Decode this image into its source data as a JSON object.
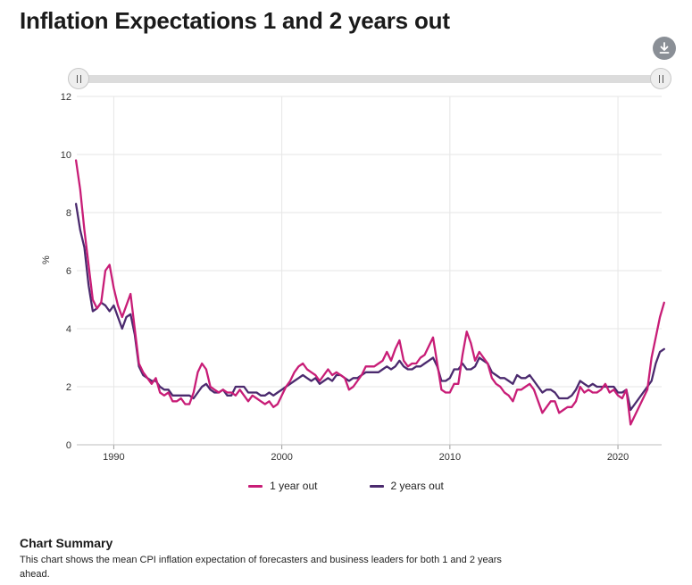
{
  "title": "Inflation Expectations 1 and 2 years out",
  "download": {
    "icon": "download-icon"
  },
  "range_slider": {
    "handle_icon": "grip-icon"
  },
  "chart_data": {
    "type": "line",
    "xlabel": "",
    "ylabel": "%",
    "xlim": [
      1987.8,
      2022.6
    ],
    "ylim": [
      0,
      12
    ],
    "x_ticks": [
      1990,
      2000,
      2010,
      2020
    ],
    "y_ticks": [
      0,
      2,
      4,
      6,
      8,
      10,
      12
    ],
    "grid": true,
    "legend_position": "bottom-center",
    "series": [
      {
        "name": "1 year out",
        "color": "#c81d77",
        "points": [
          [
            1987.75,
            9.8
          ],
          [
            1988.0,
            8.8
          ],
          [
            1988.25,
            7.4
          ],
          [
            1988.5,
            6.2
          ],
          [
            1988.75,
            5.0
          ],
          [
            1989.0,
            4.7
          ],
          [
            1989.25,
            4.9
          ],
          [
            1989.5,
            6.0
          ],
          [
            1989.75,
            6.2
          ],
          [
            1990.0,
            5.4
          ],
          [
            1990.25,
            4.8
          ],
          [
            1990.5,
            4.4
          ],
          [
            1990.75,
            4.8
          ],
          [
            1991.0,
            5.2
          ],
          [
            1991.25,
            4.0
          ],
          [
            1991.5,
            2.8
          ],
          [
            1991.75,
            2.5
          ],
          [
            1992.0,
            2.3
          ],
          [
            1992.25,
            2.1
          ],
          [
            1992.5,
            2.3
          ],
          [
            1992.75,
            1.8
          ],
          [
            1993.0,
            1.7
          ],
          [
            1993.25,
            1.8
          ],
          [
            1993.5,
            1.5
          ],
          [
            1993.75,
            1.5
          ],
          [
            1994.0,
            1.6
          ],
          [
            1994.25,
            1.4
          ],
          [
            1994.5,
            1.4
          ],
          [
            1994.75,
            1.8
          ],
          [
            1995.0,
            2.5
          ],
          [
            1995.25,
            2.8
          ],
          [
            1995.5,
            2.6
          ],
          [
            1995.75,
            2.0
          ],
          [
            1996.0,
            1.9
          ],
          [
            1996.25,
            1.8
          ],
          [
            1996.5,
            1.9
          ],
          [
            1996.75,
            1.8
          ],
          [
            1997.0,
            1.8
          ],
          [
            1997.25,
            1.7
          ],
          [
            1997.5,
            1.9
          ],
          [
            1997.75,
            1.7
          ],
          [
            1998.0,
            1.5
          ],
          [
            1998.25,
            1.7
          ],
          [
            1998.5,
            1.6
          ],
          [
            1998.75,
            1.5
          ],
          [
            1999.0,
            1.4
          ],
          [
            1999.25,
            1.5
          ],
          [
            1999.5,
            1.3
          ],
          [
            1999.75,
            1.4
          ],
          [
            2000.0,
            1.7
          ],
          [
            2000.25,
            2.0
          ],
          [
            2000.5,
            2.2
          ],
          [
            2000.75,
            2.5
          ],
          [
            2001.0,
            2.7
          ],
          [
            2001.25,
            2.8
          ],
          [
            2001.5,
            2.6
          ],
          [
            2001.75,
            2.5
          ],
          [
            2002.0,
            2.4
          ],
          [
            2002.25,
            2.2
          ],
          [
            2002.5,
            2.4
          ],
          [
            2002.75,
            2.6
          ],
          [
            2003.0,
            2.4
          ],
          [
            2003.25,
            2.5
          ],
          [
            2003.5,
            2.4
          ],
          [
            2003.75,
            2.3
          ],
          [
            2004.0,
            1.9
          ],
          [
            2004.25,
            2.0
          ],
          [
            2004.5,
            2.2
          ],
          [
            2004.75,
            2.4
          ],
          [
            2005.0,
            2.7
          ],
          [
            2005.25,
            2.7
          ],
          [
            2005.5,
            2.7
          ],
          [
            2005.75,
            2.8
          ],
          [
            2006.0,
            2.9
          ],
          [
            2006.25,
            3.2
          ],
          [
            2006.5,
            2.9
          ],
          [
            2006.75,
            3.3
          ],
          [
            2007.0,
            3.6
          ],
          [
            2007.25,
            2.9
          ],
          [
            2007.5,
            2.7
          ],
          [
            2007.75,
            2.8
          ],
          [
            2008.0,
            2.8
          ],
          [
            2008.25,
            3.0
          ],
          [
            2008.5,
            3.1
          ],
          [
            2008.75,
            3.4
          ],
          [
            2009.0,
            3.7
          ],
          [
            2009.25,
            2.8
          ],
          [
            2009.5,
            1.9
          ],
          [
            2009.75,
            1.8
          ],
          [
            2010.0,
            1.8
          ],
          [
            2010.25,
            2.1
          ],
          [
            2010.5,
            2.1
          ],
          [
            2010.75,
            3.1
          ],
          [
            2011.0,
            3.9
          ],
          [
            2011.25,
            3.5
          ],
          [
            2011.5,
            2.9
          ],
          [
            2011.75,
            3.2
          ],
          [
            2012.0,
            3.0
          ],
          [
            2012.25,
            2.8
          ],
          [
            2012.5,
            2.3
          ],
          [
            2012.75,
            2.1
          ],
          [
            2013.0,
            2.0
          ],
          [
            2013.25,
            1.8
          ],
          [
            2013.5,
            1.7
          ],
          [
            2013.75,
            1.5
          ],
          [
            2014.0,
            1.9
          ],
          [
            2014.25,
            1.9
          ],
          [
            2014.5,
            2.0
          ],
          [
            2014.75,
            2.1
          ],
          [
            2015.0,
            1.9
          ],
          [
            2015.25,
            1.5
          ],
          [
            2015.5,
            1.1
          ],
          [
            2015.75,
            1.3
          ],
          [
            2016.0,
            1.5
          ],
          [
            2016.25,
            1.5
          ],
          [
            2016.5,
            1.1
          ],
          [
            2016.75,
            1.2
          ],
          [
            2017.0,
            1.3
          ],
          [
            2017.25,
            1.3
          ],
          [
            2017.5,
            1.5
          ],
          [
            2017.75,
            2.0
          ],
          [
            2018.0,
            1.8
          ],
          [
            2018.25,
            1.9
          ],
          [
            2018.5,
            1.8
          ],
          [
            2018.75,
            1.8
          ],
          [
            2019.0,
            1.9
          ],
          [
            2019.25,
            2.1
          ],
          [
            2019.5,
            1.8
          ],
          [
            2019.75,
            1.9
          ],
          [
            2020.0,
            1.7
          ],
          [
            2020.25,
            1.6
          ],
          [
            2020.5,
            1.9
          ],
          [
            2020.75,
            0.7
          ],
          [
            2021.0,
            1.0
          ],
          [
            2021.25,
            1.3
          ],
          [
            2021.5,
            1.6
          ],
          [
            2021.75,
            1.9
          ],
          [
            2022.0,
            3.0
          ],
          [
            2022.25,
            3.7
          ],
          [
            2022.5,
            4.4
          ],
          [
            2022.75,
            4.9
          ]
        ]
      },
      {
        "name": "2 years out",
        "color": "#4b2a6e",
        "points": [
          [
            1987.75,
            8.3
          ],
          [
            1988.0,
            7.4
          ],
          [
            1988.25,
            6.8
          ],
          [
            1988.5,
            5.5
          ],
          [
            1988.75,
            4.6
          ],
          [
            1989.0,
            4.7
          ],
          [
            1989.25,
            4.9
          ],
          [
            1989.5,
            4.8
          ],
          [
            1989.75,
            4.6
          ],
          [
            1990.0,
            4.8
          ],
          [
            1990.25,
            4.4
          ],
          [
            1990.5,
            4.0
          ],
          [
            1990.75,
            4.4
          ],
          [
            1991.0,
            4.5
          ],
          [
            1991.25,
            3.8
          ],
          [
            1991.5,
            2.7
          ],
          [
            1991.75,
            2.4
          ],
          [
            1992.0,
            2.3
          ],
          [
            1992.25,
            2.2
          ],
          [
            1992.5,
            2.2
          ],
          [
            1992.75,
            2.0
          ],
          [
            1993.0,
            1.9
          ],
          [
            1993.25,
            1.9
          ],
          [
            1993.5,
            1.7
          ],
          [
            1993.75,
            1.7
          ],
          [
            1994.0,
            1.7
          ],
          [
            1994.25,
            1.7
          ],
          [
            1994.5,
            1.7
          ],
          [
            1994.75,
            1.6
          ],
          [
            1995.0,
            1.8
          ],
          [
            1995.25,
            2.0
          ],
          [
            1995.5,
            2.1
          ],
          [
            1995.75,
            1.9
          ],
          [
            1996.0,
            1.8
          ],
          [
            1996.25,
            1.8
          ],
          [
            1996.5,
            1.9
          ],
          [
            1996.75,
            1.7
          ],
          [
            1997.0,
            1.7
          ],
          [
            1997.25,
            2.0
          ],
          [
            1997.5,
            2.0
          ],
          [
            1997.75,
            2.0
          ],
          [
            1998.0,
            1.8
          ],
          [
            1998.25,
            1.8
          ],
          [
            1998.5,
            1.8
          ],
          [
            1998.75,
            1.7
          ],
          [
            1999.0,
            1.7
          ],
          [
            1999.25,
            1.8
          ],
          [
            1999.5,
            1.7
          ],
          [
            1999.75,
            1.8
          ],
          [
            2000.0,
            1.9
          ],
          [
            2000.25,
            2.0
          ],
          [
            2000.5,
            2.1
          ],
          [
            2000.75,
            2.2
          ],
          [
            2001.0,
            2.3
          ],
          [
            2001.25,
            2.4
          ],
          [
            2001.5,
            2.3
          ],
          [
            2001.75,
            2.2
          ],
          [
            2002.0,
            2.3
          ],
          [
            2002.25,
            2.1
          ],
          [
            2002.5,
            2.2
          ],
          [
            2002.75,
            2.3
          ],
          [
            2003.0,
            2.2
          ],
          [
            2003.25,
            2.4
          ],
          [
            2003.5,
            2.4
          ],
          [
            2003.75,
            2.3
          ],
          [
            2004.0,
            2.2
          ],
          [
            2004.25,
            2.3
          ],
          [
            2004.5,
            2.3
          ],
          [
            2004.75,
            2.4
          ],
          [
            2005.0,
            2.5
          ],
          [
            2005.25,
            2.5
          ],
          [
            2005.5,
            2.5
          ],
          [
            2005.75,
            2.5
          ],
          [
            2006.0,
            2.6
          ],
          [
            2006.25,
            2.7
          ],
          [
            2006.5,
            2.6
          ],
          [
            2006.75,
            2.7
          ],
          [
            2007.0,
            2.9
          ],
          [
            2007.25,
            2.7
          ],
          [
            2007.5,
            2.6
          ],
          [
            2007.75,
            2.6
          ],
          [
            2008.0,
            2.7
          ],
          [
            2008.25,
            2.7
          ],
          [
            2008.5,
            2.8
          ],
          [
            2008.75,
            2.9
          ],
          [
            2009.0,
            3.0
          ],
          [
            2009.25,
            2.7
          ],
          [
            2009.5,
            2.2
          ],
          [
            2009.75,
            2.2
          ],
          [
            2010.0,
            2.3
          ],
          [
            2010.25,
            2.6
          ],
          [
            2010.5,
            2.6
          ],
          [
            2010.75,
            2.8
          ],
          [
            2011.0,
            2.6
          ],
          [
            2011.25,
            2.6
          ],
          [
            2011.5,
            2.7
          ],
          [
            2011.75,
            3.0
          ],
          [
            2012.0,
            2.9
          ],
          [
            2012.25,
            2.8
          ],
          [
            2012.5,
            2.5
          ],
          [
            2012.75,
            2.4
          ],
          [
            2013.0,
            2.3
          ],
          [
            2013.25,
            2.3
          ],
          [
            2013.5,
            2.2
          ],
          [
            2013.75,
            2.1
          ],
          [
            2014.0,
            2.4
          ],
          [
            2014.25,
            2.3
          ],
          [
            2014.5,
            2.3
          ],
          [
            2014.75,
            2.4
          ],
          [
            2015.0,
            2.2
          ],
          [
            2015.25,
            2.0
          ],
          [
            2015.5,
            1.8
          ],
          [
            2015.75,
            1.9
          ],
          [
            2016.0,
            1.9
          ],
          [
            2016.25,
            1.8
          ],
          [
            2016.5,
            1.6
          ],
          [
            2016.75,
            1.6
          ],
          [
            2017.0,
            1.6
          ],
          [
            2017.25,
            1.7
          ],
          [
            2017.5,
            1.9
          ],
          [
            2017.75,
            2.2
          ],
          [
            2018.0,
            2.1
          ],
          [
            2018.25,
            2.0
          ],
          [
            2018.5,
            2.1
          ],
          [
            2018.75,
            2.0
          ],
          [
            2019.0,
            2.0
          ],
          [
            2019.25,
            2.0
          ],
          [
            2019.5,
            2.0
          ],
          [
            2019.75,
            2.0
          ],
          [
            2020.0,
            1.8
          ],
          [
            2020.25,
            1.8
          ],
          [
            2020.5,
            1.9
          ],
          [
            2020.75,
            1.2
          ],
          [
            2021.0,
            1.4
          ],
          [
            2021.25,
            1.6
          ],
          [
            2021.5,
            1.8
          ],
          [
            2021.75,
            2.0
          ],
          [
            2022.0,
            2.2
          ],
          [
            2022.25,
            2.8
          ],
          [
            2022.5,
            3.2
          ],
          [
            2022.75,
            3.3
          ]
        ]
      }
    ]
  },
  "summary": {
    "heading": "Chart Summary",
    "text": "This chart shows the mean CPI inflation expectation of forecasters and business leaders for both 1 and 2 years ahead."
  }
}
